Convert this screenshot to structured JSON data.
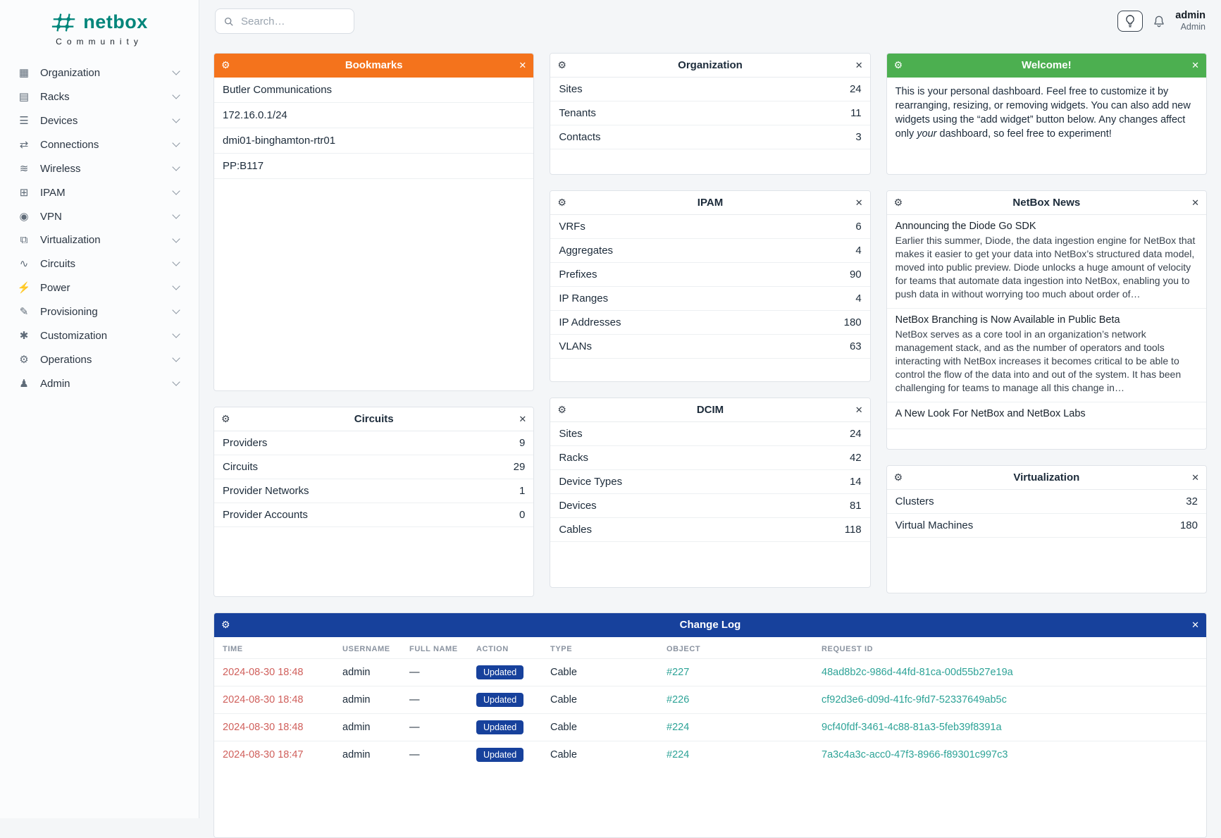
{
  "brand": {
    "name": "netbox",
    "subtitle": "Community"
  },
  "topbar": {
    "search_placeholder": "Search…",
    "user_name": "admin",
    "user_role": "Admin"
  },
  "icons": {
    "gear": "⚙",
    "close": "✕"
  },
  "colors": {
    "brand_teal": "#00857a",
    "accent_orange": "#f4731c",
    "accent_green": "#4caf50",
    "accent_blue": "#17419c",
    "link_teal": "#2da397",
    "link_red": "#d0605c"
  },
  "sidebar": {
    "items": [
      {
        "label": "Organization",
        "icon": "building-icon",
        "glyph": "▦"
      },
      {
        "label": "Racks",
        "icon": "rack-icon",
        "glyph": "▤"
      },
      {
        "label": "Devices",
        "icon": "devices-icon",
        "glyph": "☰"
      },
      {
        "label": "Connections",
        "icon": "connections-icon",
        "glyph": "⇄"
      },
      {
        "label": "Wireless",
        "icon": "wifi-icon",
        "glyph": "≋"
      },
      {
        "label": "IPAM",
        "icon": "ipam-icon",
        "glyph": "⊞"
      },
      {
        "label": "VPN",
        "icon": "vpn-icon",
        "glyph": "◉"
      },
      {
        "label": "Virtualization",
        "icon": "virtualization-icon",
        "glyph": "⧉"
      },
      {
        "label": "Circuits",
        "icon": "circuits-icon",
        "glyph": "∿"
      },
      {
        "label": "Power",
        "icon": "power-icon",
        "glyph": "⚡"
      },
      {
        "label": "Provisioning",
        "icon": "provisioning-icon",
        "glyph": "✎"
      },
      {
        "label": "Customization",
        "icon": "customization-icon",
        "glyph": "✱"
      },
      {
        "label": "Operations",
        "icon": "operations-icon",
        "glyph": "⚙"
      },
      {
        "label": "Admin",
        "icon": "admin-icon",
        "glyph": "♟"
      }
    ]
  },
  "widgets": {
    "bookmarks": {
      "title": "Bookmarks",
      "items": [
        "Butler Communications",
        "172.16.0.1/24",
        "dmi01-binghamton-rtr01",
        "PP:B117"
      ]
    },
    "organization": {
      "title": "Organization",
      "rows": [
        {
          "label": "Sites",
          "value": 24
        },
        {
          "label": "Tenants",
          "value": 11
        },
        {
          "label": "Contacts",
          "value": 3
        }
      ]
    },
    "welcome": {
      "title": "Welcome!",
      "body_1": "This is your personal dashboard. Feel free to customize it by rearranging, resizing, or removing widgets. You can also add new widgets using the “add widget” button below. Any changes affect only ",
      "body_em": "your",
      "body_2": " dashboard, so feel free to experiment!"
    },
    "ipam": {
      "title": "IPAM",
      "rows": [
        {
          "label": "VRFs",
          "value": 6
        },
        {
          "label": "Aggregates",
          "value": 4
        },
        {
          "label": "Prefixes",
          "value": 90
        },
        {
          "label": "IP Ranges",
          "value": 4
        },
        {
          "label": "IP Addresses",
          "value": 180
        },
        {
          "label": "VLANs",
          "value": 63
        }
      ]
    },
    "news": {
      "title": "NetBox News",
      "items": [
        {
          "headline": "Announcing the Diode Go SDK",
          "body": "Earlier this summer, Diode, the data ingestion engine for NetBox that makes it easier to get your data into NetBox’s structured data model, moved into public preview. Diode unlocks a huge amount of velocity for teams that automate data ingestion into NetBox, enabling you to push data in without worrying too much about order of…"
        },
        {
          "headline": "NetBox Branching is Now Available in Public Beta",
          "body": "NetBox serves as a core tool in an organization’s network management stack, and as the number of operators and tools interacting with NetBox increases it becomes critical to be able to control the flow of the data into and out of the system. It has been challenging for teams to manage all this change in…"
        },
        {
          "headline": "A New Look For NetBox and NetBox Labs",
          "body": ""
        }
      ]
    },
    "circuits": {
      "title": "Circuits",
      "rows": [
        {
          "label": "Providers",
          "value": 9
        },
        {
          "label": "Circuits",
          "value": 29
        },
        {
          "label": "Provider Networks",
          "value": 1
        },
        {
          "label": "Provider Accounts",
          "value": 0
        }
      ]
    },
    "dcim": {
      "title": "DCIM",
      "rows": [
        {
          "label": "Sites",
          "value": 24
        },
        {
          "label": "Racks",
          "value": 42
        },
        {
          "label": "Device Types",
          "value": 14
        },
        {
          "label": "Devices",
          "value": 81
        },
        {
          "label": "Cables",
          "value": 118
        }
      ]
    },
    "virtualization": {
      "title": "Virtualization",
      "rows": [
        {
          "label": "Clusters",
          "value": 32
        },
        {
          "label": "Virtual Machines",
          "value": 180
        }
      ]
    },
    "changelog": {
      "title": "Change Log",
      "columns": [
        "TIME",
        "USERNAME",
        "FULL NAME",
        "ACTION",
        "TYPE",
        "OBJECT",
        "REQUEST ID"
      ],
      "rows": [
        {
          "time": "2024-08-30 18:48",
          "username": "admin",
          "full_name": "—",
          "action": "Updated",
          "type": "Cable",
          "object": "#227",
          "request_id": "48ad8b2c-986d-44fd-81ca-00d55b27e19a"
        },
        {
          "time": "2024-08-30 18:48",
          "username": "admin",
          "full_name": "—",
          "action": "Updated",
          "type": "Cable",
          "object": "#226",
          "request_id": "cf92d3e6-d09d-41fc-9fd7-52337649ab5c"
        },
        {
          "time": "2024-08-30 18:48",
          "username": "admin",
          "full_name": "—",
          "action": "Updated",
          "type": "Cable",
          "object": "#224",
          "request_id": "9cf40fdf-3461-4c88-81a3-5feb39f8391a"
        },
        {
          "time": "2024-08-30 18:47",
          "username": "admin",
          "full_name": "—",
          "action": "Updated",
          "type": "Cable",
          "object": "#224",
          "request_id": "7a3c4a3c-acc0-47f3-8966-f89301c997c3"
        }
      ]
    }
  }
}
